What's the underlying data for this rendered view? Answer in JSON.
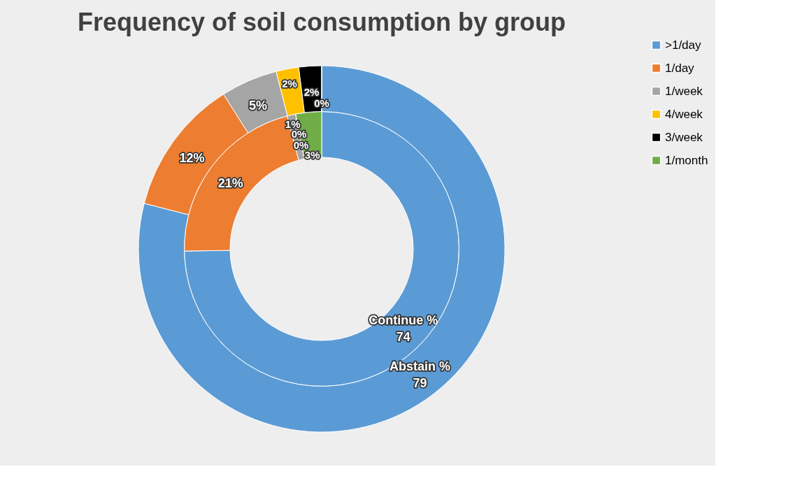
{
  "chart_data": {
    "type": "donut",
    "title": "Frequency of soil consumption by group",
    "categories": [
      ">1/day",
      "1/day",
      "1/week",
      "4/week",
      "3/week",
      "1/month"
    ],
    "colors": [
      "#5b9bd5",
      "#ed7d31",
      "#a5a5a5",
      "#ffc000",
      "#000000",
      "#70ad47"
    ],
    "series": [
      {
        "name": "Continue %",
        "values": [
          74,
          21,
          1,
          0,
          0,
          3
        ],
        "value_labels": [
          "74",
          "21%",
          "1%",
          "0%",
          "0%",
          "3%"
        ]
      },
      {
        "name": "Abstain %",
        "values": [
          79,
          12,
          5,
          2,
          2,
          0
        ],
        "value_labels": [
          "79",
          "12%",
          "5%",
          "2%",
          "2%",
          "0%"
        ]
      }
    ],
    "legend": "right"
  }
}
